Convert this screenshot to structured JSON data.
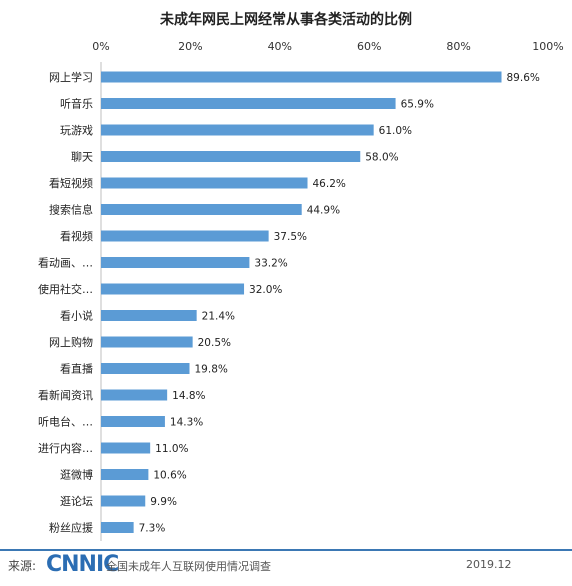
{
  "chart_data": {
    "type": "bar",
    "orientation": "horizontal",
    "title": "未成年网民上网经常从事各类活动的比例",
    "categories": [
      "网上学习",
      "听音乐",
      "玩游戏",
      "聊天",
      "看短视频",
      "搜索信息",
      "看视频",
      "看动画、…",
      "使用社交…",
      "看小说",
      "网上购物",
      "看直播",
      "看新闻资讯",
      "听电台、…",
      "进行内容…",
      "逛微博",
      "逛论坛",
      "粉丝应援"
    ],
    "values": [
      89.6,
      65.9,
      61.0,
      58.0,
      46.2,
      44.9,
      37.5,
      33.2,
      32.0,
      21.4,
      20.5,
      19.8,
      14.8,
      14.3,
      11.0,
      10.6,
      9.9,
      7.3
    ],
    "value_labels": [
      "89.6%",
      "65.9%",
      "61.0%",
      "58.0%",
      "46.2%",
      "44.9%",
      "37.5%",
      "33.2%",
      "32.0%",
      "21.4%",
      "20.5%",
      "19.8%",
      "14.8%",
      "14.3%",
      "11.0%",
      "10.6%",
      "9.9%",
      "7.3%"
    ],
    "xlim": [
      0,
      100
    ],
    "x_ticks": [
      "0%",
      "20%",
      "40%",
      "60%",
      "80%",
      "100%"
    ],
    "x_axis_position": "top",
    "grid": false,
    "legend": "none",
    "bar_color": "#5b9bd5"
  },
  "footer": {
    "source_label": "来源:",
    "logo_text": "CNNIC",
    "description": "全国未成年人互联网使用情况调查",
    "date": "2019.12",
    "accent_color": "#3b78b4"
  }
}
